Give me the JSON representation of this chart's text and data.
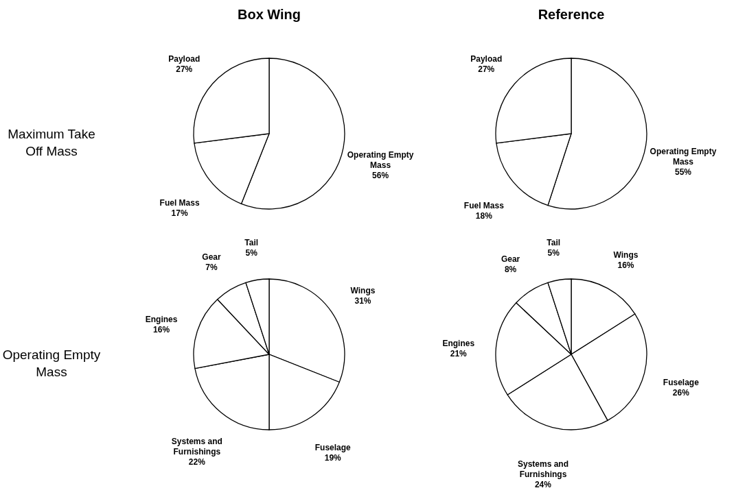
{
  "chart_data": [
    {
      "type": "pie",
      "title": "Box Wing",
      "ylabel": "Maximum Take Off Mass",
      "categories": [
        "Operating Empty Mass",
        "Fuel Mass",
        "Payload"
      ],
      "values": [
        56,
        17,
        27
      ],
      "value_labels": [
        "56%",
        "17%",
        "27%"
      ],
      "colors": [
        "#ffffff",
        "#ffffff",
        "#ffffff"
      ]
    },
    {
      "type": "pie",
      "title": "Reference",
      "categories": [
        "Operating Empty Mass",
        "Fuel Mass",
        "Payload"
      ],
      "values": [
        55,
        18,
        27
      ],
      "value_labels": [
        "55%",
        "18%",
        "27%"
      ],
      "colors": [
        "#ffffff",
        "#ffffff",
        "#ffffff"
      ]
    },
    {
      "type": "pie",
      "ylabel": "Operating Empty Mass",
      "categories": [
        "Wings",
        "Fuselage",
        "Systems and Furnishings",
        "Engines",
        "Gear",
        "Tail"
      ],
      "values": [
        31,
        19,
        22,
        16,
        7,
        5
      ],
      "value_labels": [
        "31%",
        "19%",
        "22%",
        "16%",
        "7%",
        "5%"
      ],
      "colors": [
        "#ffffff",
        "#ffffff",
        "#ffffff",
        "#ffffff",
        "#ffffff",
        "#ffffff"
      ]
    },
    {
      "type": "pie",
      "categories": [
        "Wings",
        "Fuselage",
        "Systems and Furnishings",
        "Engines",
        "Gear",
        "Tail"
      ],
      "values": [
        16,
        26,
        24,
        21,
        8,
        5
      ],
      "value_labels": [
        "16%",
        "26%",
        "24%",
        "21%",
        "8%",
        "5%"
      ],
      "colors": [
        "#ffffff",
        "#ffffff",
        "#ffffff",
        "#ffffff",
        "#ffffff",
        "#ffffff"
      ]
    }
  ]
}
